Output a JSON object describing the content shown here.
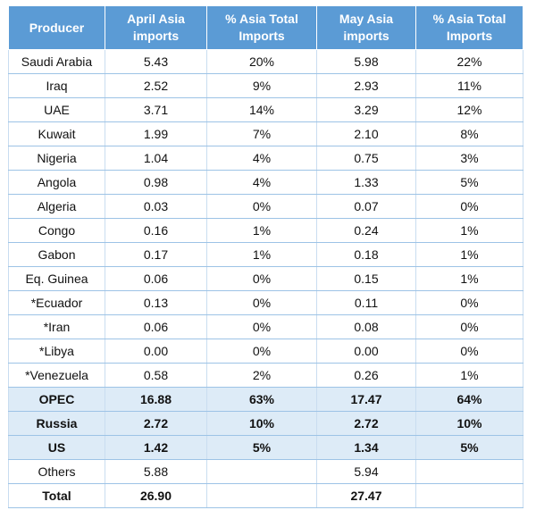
{
  "table": {
    "headers": [
      "Producer",
      "April Asia imports",
      "% Asia Total Imports",
      "May Asia imports",
      "% Asia Total Imports"
    ],
    "rows": [
      {
        "cells": [
          "Saudi Arabia",
          "5.43",
          "20%",
          "5.98",
          "22%"
        ],
        "highlight": false
      },
      {
        "cells": [
          "Iraq",
          "2.52",
          "9%",
          "2.93",
          "11%"
        ],
        "highlight": false
      },
      {
        "cells": [
          "UAE",
          "3.71",
          "14%",
          "3.29",
          "12%"
        ],
        "highlight": false
      },
      {
        "cells": [
          "Kuwait",
          "1.99",
          "7%",
          "2.10",
          "8%"
        ],
        "highlight": false
      },
      {
        "cells": [
          "Nigeria",
          "1.04",
          "4%",
          "0.75",
          "3%"
        ],
        "highlight": false
      },
      {
        "cells": [
          "Angola",
          "0.98",
          "4%",
          "1.33",
          "5%"
        ],
        "highlight": false
      },
      {
        "cells": [
          "Algeria",
          "0.03",
          "0%",
          "0.07",
          "0%"
        ],
        "highlight": false
      },
      {
        "cells": [
          "Congo",
          "0.16",
          "1%",
          "0.24",
          "1%"
        ],
        "highlight": false
      },
      {
        "cells": [
          "Gabon",
          "0.17",
          "1%",
          "0.18",
          "1%"
        ],
        "highlight": false
      },
      {
        "cells": [
          "Eq. Guinea",
          "0.06",
          "0%",
          "0.15",
          "1%"
        ],
        "highlight": false
      },
      {
        "cells": [
          "*Ecuador",
          "0.13",
          "0%",
          "0.11",
          "0%"
        ],
        "highlight": false
      },
      {
        "cells": [
          "*Iran",
          "0.06",
          "0%",
          "0.08",
          "0%"
        ],
        "highlight": false
      },
      {
        "cells": [
          "*Libya",
          "0.00",
          "0%",
          "0.00",
          "0%"
        ],
        "highlight": false
      },
      {
        "cells": [
          "*Venezuela",
          "0.58",
          "2%",
          "0.26",
          "1%"
        ],
        "highlight": false
      },
      {
        "cells": [
          "OPEC",
          "16.88",
          "63%",
          "17.47",
          "64%"
        ],
        "highlight": true
      },
      {
        "cells": [
          "Russia",
          "2.72",
          "10%",
          "2.72",
          "10%"
        ],
        "highlight": true
      },
      {
        "cells": [
          "US",
          "1.42",
          "5%",
          "1.34",
          "5%"
        ],
        "highlight": true
      },
      {
        "cells": [
          "Others",
          "5.88",
          "",
          "5.94",
          ""
        ],
        "highlight": false
      },
      {
        "cells": [
          "Total",
          "26.90",
          "",
          "27.47",
          ""
        ],
        "highlight": false,
        "bold": true
      }
    ]
  },
  "colors": {
    "header_bg": "#5b9bd5",
    "header_text": "#ffffff",
    "highlight_bg": "#ddebf7",
    "grid_line": "#9dc3e6"
  }
}
